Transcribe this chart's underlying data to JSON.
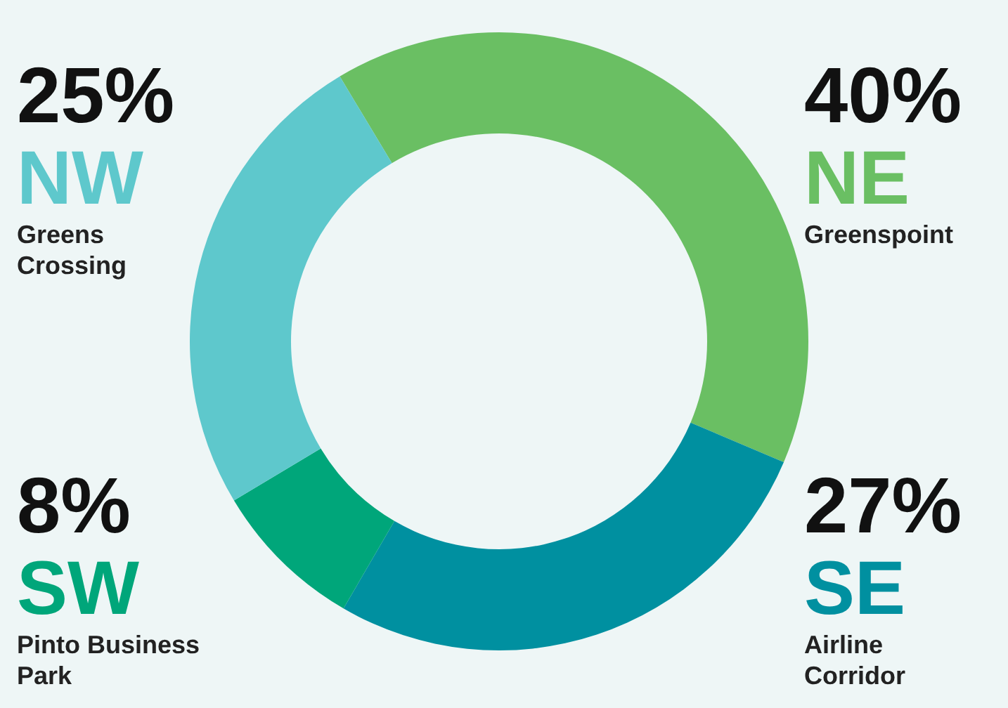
{
  "chart_data": {
    "type": "donut",
    "categories": [
      "NE",
      "SE",
      "SW",
      "NW"
    ],
    "values": [
      40,
      27,
      8,
      25
    ],
    "value_labels": [
      "40%",
      "27%",
      "8%",
      "25%"
    ],
    "colors": [
      "#6abf63",
      "#0090a0",
      "#00a67a",
      "#5ec8cc"
    ],
    "annotations": [
      "Greenspoint",
      "Airline Corridor",
      "Pinto Business Park",
      "Greens Crossing"
    ]
  }
}
